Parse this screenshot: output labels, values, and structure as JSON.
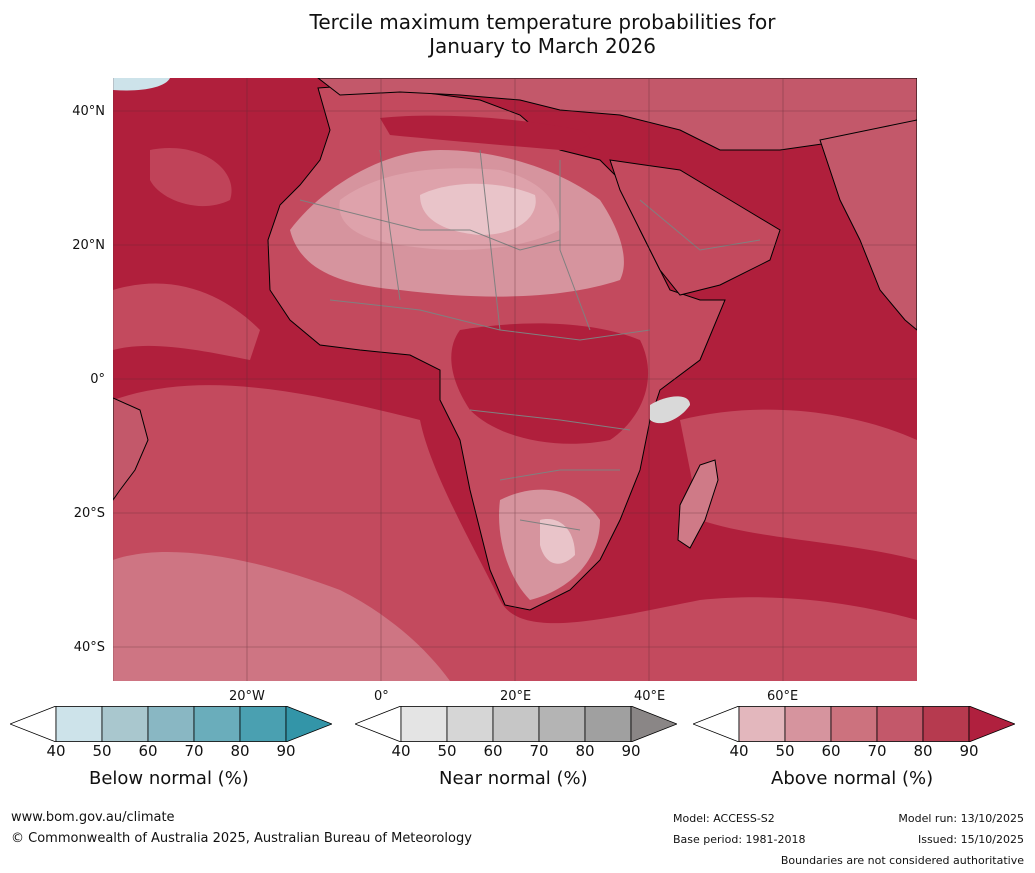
{
  "title_line1": "Tercile maximum temperature probabilities for",
  "title_line2": "January to March 2026",
  "latitude_labels": [
    "40°N",
    "20°N",
    "0°",
    "20°S",
    "40°S"
  ],
  "longitude_labels": [
    "20°W",
    "0°",
    "20°E",
    "40°E",
    "60°E"
  ],
  "legends": [
    {
      "label": "Below normal (%)",
      "ticks": [
        "40",
        "50",
        "60",
        "70",
        "80",
        "90"
      ],
      "colors": [
        "#ffffff",
        "#cde3ea",
        "#a9c7ce",
        "#89b7c3",
        "#6aadbb",
        "#4aa0b1",
        "#3395a8"
      ]
    },
    {
      "label": "Near normal (%)",
      "ticks": [
        "40",
        "50",
        "60",
        "70",
        "80",
        "90"
      ],
      "colors": [
        "#ffffff",
        "#e4e4e4",
        "#d6d6d6",
        "#c6c6c6",
        "#b4b4b4",
        "#a0a0a0",
        "#8a8686"
      ]
    },
    {
      "label": "Above normal (%)",
      "ticks": [
        "40",
        "50",
        "60",
        "70",
        "80",
        "90"
      ],
      "colors": [
        "#ffffff",
        "#e3b7bd",
        "#d6949e",
        "#cc727e",
        "#c3586a",
        "#b63a4f",
        "#b0203e"
      ]
    }
  ],
  "footer": {
    "website": "www.bom.gov.au/climate",
    "copyright": "© Commonwealth of Australia 2025, Australian Bureau of Meteorology",
    "model": "Model: ACCESS-S2",
    "base_period": "Base period: 1981-2018",
    "model_run": "Model run: 13/10/2025",
    "issued": "Issued: 15/10/2025",
    "disclaimer": "Boundaries are not considered authoritative"
  },
  "map_colors": {
    "ocean_high": "#b01f3c",
    "ocean_mid": "#c34a5e",
    "above_light": "#cf7a87",
    "above_lighter": "#dea2ab",
    "above_lightest": "#e9c4c9",
    "coast": "#000000",
    "border": "#808080",
    "grid": "#5a2b33"
  }
}
